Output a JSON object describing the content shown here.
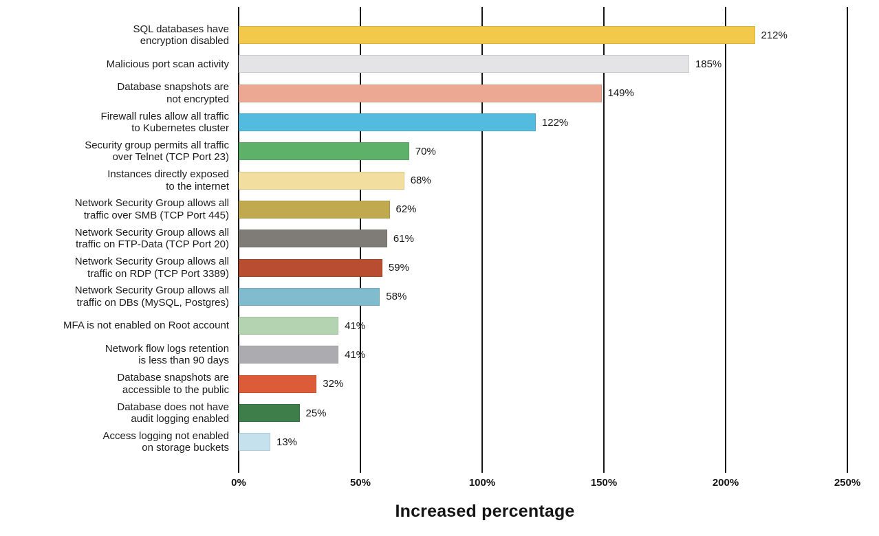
{
  "chart_data": {
    "type": "bar",
    "orientation": "horizontal",
    "title": "",
    "xlabel": "Increased percentage",
    "ylabel": "",
    "xlim": [
      0,
      250
    ],
    "grid": true,
    "legend": "none",
    "x_ticks": [
      {
        "value": 0,
        "label": "0%"
      },
      {
        "value": 50,
        "label": "50%"
      },
      {
        "value": 100,
        "label": "100%"
      },
      {
        "value": 150,
        "label": "150%"
      },
      {
        "value": 200,
        "label": "200%"
      },
      {
        "value": 250,
        "label": "250%"
      }
    ],
    "categories": [
      "SQL databases have\nencryption disabled",
      "Malicious port scan activity",
      "Database snapshots are\nnot encrypted",
      "Firewall rules allow all traffic\nto Kubernetes cluster",
      "Security group permits all traffic\nover Telnet (TCP Port 23)",
      "Instances directly exposed\nto the internet",
      "Network Security Group allows all\ntraffic over SMB (TCP Port 445)",
      "Network Security Group allows all\ntraffic on FTP-Data (TCP Port 20)",
      "Network Security Group allows all\ntraffic on RDP (TCP Port 3389)",
      "Network Security Group allows all\ntraffic on DBs (MySQL, Postgres)",
      "MFA is not enabled on Root account",
      "Network flow logs retention\nis less than 90 days",
      "Database snapshots are\naccessible to the public",
      "Database does not have\naudit logging enabled",
      "Access logging not enabled\non storage buckets"
    ],
    "values": [
      212,
      185,
      149,
      122,
      70,
      68,
      62,
      61,
      59,
      58,
      41,
      41,
      32,
      25,
      13
    ],
    "value_labels": [
      "212%",
      "185%",
      "149%",
      "122%",
      "70%",
      "68%",
      "62%",
      "61%",
      "59%",
      "58%",
      "41%",
      "41%",
      "32%",
      "25%",
      "13%"
    ],
    "bar_colors": [
      "#F2C94A",
      "#E4E4E7",
      "#ECA893",
      "#54BBE0",
      "#5EB168",
      "#F2DFA0",
      "#C1A950",
      "#7F7C78",
      "#B84D31",
      "#80BCCE",
      "#B4D3B0",
      "#ACACB0",
      "#DC5B38",
      "#3E7E4B",
      "#C5E1EE"
    ]
  },
  "style": {
    "background": "#ffffff",
    "gridline_color": "#161616",
    "text_color": "#1b1b1b"
  }
}
